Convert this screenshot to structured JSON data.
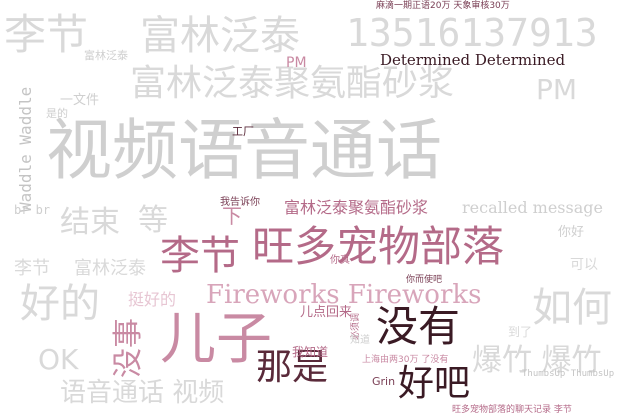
{
  "words": {
    "w01": "李节",
    "w02": "富林泛泰",
    "w03": "13516137913",
    "w04": "视频语音通话",
    "w05": "富林泛泰聚氨酯砂浆",
    "w06": "PM",
    "w07": "Determined Determined",
    "w08": "旺多宠物部落",
    "w09": "李节",
    "w10": "Fireworks Fireworks",
    "w11": "儿子",
    "w12": "没有",
    "w13": "那是",
    "w14": "好吧",
    "w15": "好的",
    "w16": "如何",
    "w17": "爆竹 爆竹",
    "w18": "语音通话 视频",
    "w19": "OK",
    "w20": "没事",
    "w21": "结束",
    "w22": "等",
    "w23": "富林泛泰聚氨酯砂浆",
    "w24": "recalled message",
    "w25": "李节",
    "w26": "富林泛泰",
    "w27": "挺好的",
    "w28": "Waddle Waddle",
    "w29": "一文件",
    "w30": "PM",
    "w31": "br br",
    "w32": "工厂",
    "w33": "你好",
    "w34": "儿点回来",
    "w35": "我知道",
    "w36": "Grin",
    "w37": "可以",
    "w38": "到了",
    "w39": "下",
    "w40": "是的",
    "w41": "我告诉你",
    "w42": "ThumbsUp ThumbsUp",
    "w43": "旺多宠物部落的聊天记录 李节",
    "w44": "麻滴一期正语20万 天象审核30万",
    "w45": "必须调",
    "w46": "上海由两30万 了没有",
    "w47": "你真",
    "w48": "知道",
    "w49": "你而使吧",
    "w50": "富林泛泰"
  }
}
